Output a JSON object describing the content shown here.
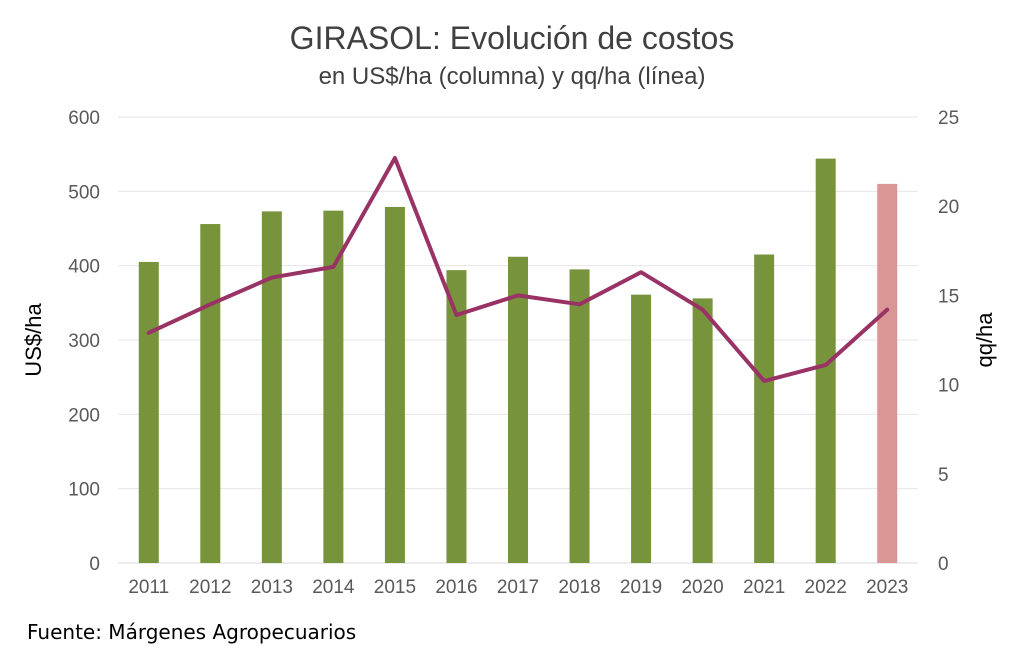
{
  "chart_data": {
    "type": "bar",
    "title": "GIRASOL: Evolución de costos",
    "subtitle": "en US$/ha (columna) y qq/ha (línea)",
    "ylabel": "US$/ha",
    "y2label": "qq/ha",
    "categories": [
      "2011",
      "2012",
      "2013",
      "2014",
      "2015",
      "2016",
      "2017",
      "2018",
      "2019",
      "2020",
      "2021",
      "2022",
      "2023"
    ],
    "ylim": [
      0,
      600
    ],
    "y_ticks": [
      0,
      100,
      200,
      300,
      400,
      500,
      600
    ],
    "y2lim": [
      0,
      25
    ],
    "y2_ticks": [
      0,
      5,
      10,
      15,
      20,
      25
    ],
    "grid": true,
    "series": [
      {
        "type": "bar",
        "axis": "left",
        "values": [
          405,
          456,
          473,
          474,
          479,
          394,
          412,
          395,
          361,
          356,
          415,
          544,
          510
        ],
        "colors": [
          "#77933c",
          "#77933c",
          "#77933c",
          "#77933c",
          "#77933c",
          "#77933c",
          "#77933c",
          "#77933c",
          "#77933c",
          "#77933c",
          "#77933c",
          "#77933c",
          "#da9694"
        ]
      },
      {
        "type": "line",
        "axis": "right",
        "color": "#993366",
        "values": [
          12.9,
          14.5,
          16.0,
          16.6,
          22.7,
          13.9,
          15.0,
          14.5,
          16.3,
          14.2,
          10.2,
          11.1,
          14.2
        ]
      }
    ]
  },
  "source": "Fuente: Márgenes Agropecuarios"
}
